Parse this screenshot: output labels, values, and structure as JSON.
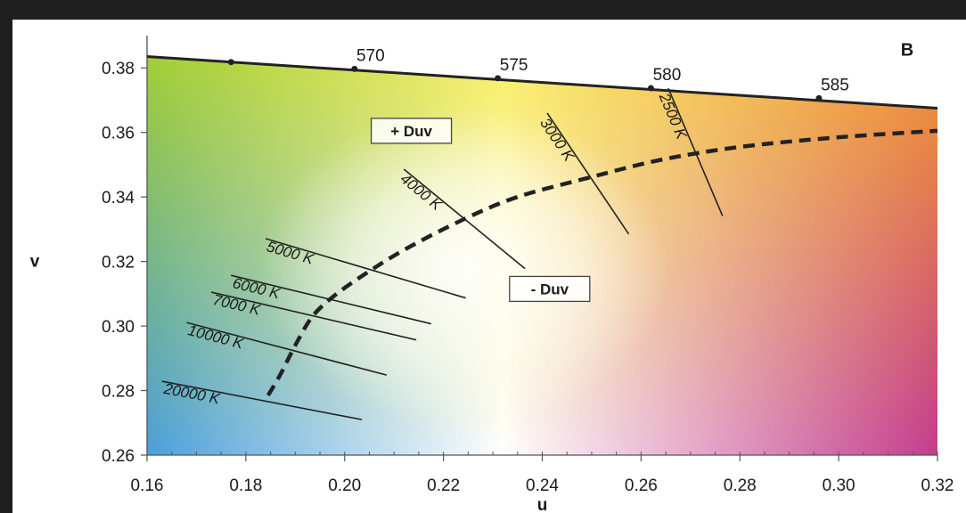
{
  "chart_data": {
    "type": "scatter",
    "panel_label": "B",
    "xlabel": "u",
    "ylabel": "v",
    "xlim": [
      0.16,
      0.32
    ],
    "ylim": [
      0.26,
      0.39
    ],
    "x_ticks": [
      {
        "value": 0.16,
        "label": "0.16"
      },
      {
        "value": 0.18,
        "label": "0.18"
      },
      {
        "value": 0.2,
        "label": "0.20"
      },
      {
        "value": 0.22,
        "label": "0.22"
      },
      {
        "value": 0.24,
        "label": "0.24"
      },
      {
        "value": 0.26,
        "label": "0.26"
      },
      {
        "value": 0.28,
        "label": "0.28"
      },
      {
        "value": 0.3,
        "label": "0.30"
      },
      {
        "value": 0.32,
        "label": "0.32"
      }
    ],
    "y_ticks": [
      {
        "value": 0.26,
        "label": "0.26"
      },
      {
        "value": 0.28,
        "label": "0.28"
      },
      {
        "value": 0.3,
        "label": "0.30"
      },
      {
        "value": 0.32,
        "label": "0.32"
      },
      {
        "value": 0.34,
        "label": "0.34"
      },
      {
        "value": 0.36,
        "label": "0.36"
      },
      {
        "value": 0.38,
        "label": "0.38"
      }
    ],
    "spectral_locus": [
      {
        "u": 0.16,
        "v": 0.3835
      },
      {
        "u": 0.32,
        "v": 0.3675
      }
    ],
    "spectral_points": [
      {
        "u": 0.177,
        "v": 0.3818,
        "label": ""
      },
      {
        "u": 0.202,
        "v": 0.3797,
        "label": "570"
      },
      {
        "u": 0.231,
        "v": 0.3768,
        "label": "575"
      },
      {
        "u": 0.262,
        "v": 0.3737,
        "label": "580"
      },
      {
        "u": 0.296,
        "v": 0.3706,
        "label": "585"
      }
    ],
    "planckian_locus": [
      {
        "u": 0.1845,
        "v": 0.2785
      },
      {
        "u": 0.187,
        "v": 0.285
      },
      {
        "u": 0.19,
        "v": 0.294
      },
      {
        "u": 0.1935,
        "v": 0.303
      },
      {
        "u": 0.198,
        "v": 0.3095
      },
      {
        "u": 0.2045,
        "v": 0.3165
      },
      {
        "u": 0.2125,
        "v": 0.324
      },
      {
        "u": 0.224,
        "v": 0.333
      },
      {
        "u": 0.235,
        "v": 0.34
      },
      {
        "u": 0.25,
        "v": 0.3462
      },
      {
        "u": 0.264,
        "v": 0.3515
      },
      {
        "u": 0.28,
        "v": 0.3555
      },
      {
        "u": 0.3,
        "v": 0.3585
      },
      {
        "u": 0.32,
        "v": 0.3605
      }
    ],
    "isotemperature_lines": [
      {
        "label": "20000 K",
        "start": {
          "u": 0.163,
          "v": 0.2829
        },
        "end": {
          "u": 0.2035,
          "v": 0.271
        }
      },
      {
        "label": "10000 K",
        "start": {
          "u": 0.168,
          "v": 0.3011
        },
        "end": {
          "u": 0.2085,
          "v": 0.2848
        }
      },
      {
        "label": "7000 K",
        "start": {
          "u": 0.173,
          "v": 0.3105
        },
        "end": {
          "u": 0.2145,
          "v": 0.2957
        }
      },
      {
        "label": "6000 K",
        "start": {
          "u": 0.177,
          "v": 0.3157
        },
        "end": {
          "u": 0.2175,
          "v": 0.3007
        }
      },
      {
        "label": "5000 K",
        "start": {
          "u": 0.184,
          "v": 0.3271
        },
        "end": {
          "u": 0.2245,
          "v": 0.3087
        }
      },
      {
        "label": "4000 K",
        "start": {
          "u": 0.212,
          "v": 0.3486
        },
        "end": {
          "u": 0.2365,
          "v": 0.3178
        }
      },
      {
        "label": "3000 K",
        "start": {
          "u": 0.241,
          "v": 0.366
        },
        "end": {
          "u": 0.2575,
          "v": 0.3285
        }
      },
      {
        "label": "2500 K",
        "start": {
          "u": 0.2655,
          "v": 0.3737
        },
        "end": {
          "u": 0.2765,
          "v": 0.3341
        }
      }
    ],
    "annotations": [
      {
        "text": "+ Duv",
        "u": 0.2135,
        "v": 0.3605
      },
      {
        "text": "- Duv",
        "u": 0.2415,
        "v": 0.3115
      }
    ],
    "colors": {
      "green": "#a6d02c",
      "yellow": "#f8ee62",
      "orange": "#f39c2e",
      "blue": "#4a9fdb",
      "magenta": "#c33d8e",
      "white": "#ffffff",
      "line": "#222222"
    }
  }
}
